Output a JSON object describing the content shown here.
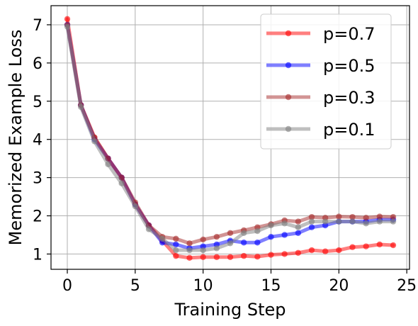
{
  "chart_data": {
    "type": "line",
    "title": "",
    "xlabel": "Training Step",
    "ylabel": "Memorized Example Loss",
    "xlim": [
      -1.2,
      25.2
    ],
    "ylim": [
      0.6,
      7.5
    ],
    "xticks": [
      0,
      5,
      10,
      15,
      20,
      25
    ],
    "yticks": [
      1,
      2,
      3,
      4,
      5,
      6,
      7
    ],
    "grid": true,
    "legend_position": "upper-right",
    "x": [
      0,
      1,
      2,
      3,
      4,
      5,
      6,
      7,
      8,
      9,
      10,
      11,
      12,
      13,
      14,
      15,
      16,
      17,
      18,
      19,
      20,
      21,
      22,
      23,
      24
    ],
    "series": [
      {
        "name": "p=0.7",
        "color": "#ff0000",
        "values": [
          7.15,
          4.9,
          4.05,
          3.5,
          3.0,
          2.3,
          1.75,
          1.35,
          0.95,
          0.9,
          0.92,
          0.92,
          0.92,
          0.95,
          0.93,
          0.98,
          1.0,
          1.03,
          1.1,
          1.07,
          1.1,
          1.18,
          1.2,
          1.25,
          1.23
        ]
      },
      {
        "name": "p=0.5",
        "color": "#0000ff",
        "values": [
          7.0,
          4.9,
          4.0,
          3.5,
          3.0,
          2.3,
          1.75,
          1.3,
          1.25,
          1.15,
          1.2,
          1.25,
          1.35,
          1.3,
          1.3,
          1.45,
          1.5,
          1.55,
          1.7,
          1.75,
          1.85,
          1.85,
          1.85,
          1.9,
          1.9
        ]
      },
      {
        "name": "p=0.3",
        "color": "#a52a2a",
        "values": [
          7.0,
          4.9,
          4.05,
          3.5,
          3.0,
          2.35,
          1.75,
          1.45,
          1.4,
          1.28,
          1.38,
          1.45,
          1.55,
          1.62,
          1.7,
          1.78,
          1.88,
          1.85,
          1.97,
          1.95,
          1.98,
          1.97,
          1.95,
          1.98,
          1.97
        ]
      },
      {
        "name": "p=0.1",
        "color": "#808080",
        "values": [
          6.95,
          4.85,
          3.95,
          3.35,
          2.85,
          2.25,
          1.65,
          1.4,
          1.1,
          1.1,
          1.1,
          1.15,
          1.28,
          1.55,
          1.6,
          1.75,
          1.8,
          1.7,
          1.85,
          1.85,
          1.85,
          1.85,
          1.8,
          1.85,
          1.85
        ]
      }
    ]
  }
}
